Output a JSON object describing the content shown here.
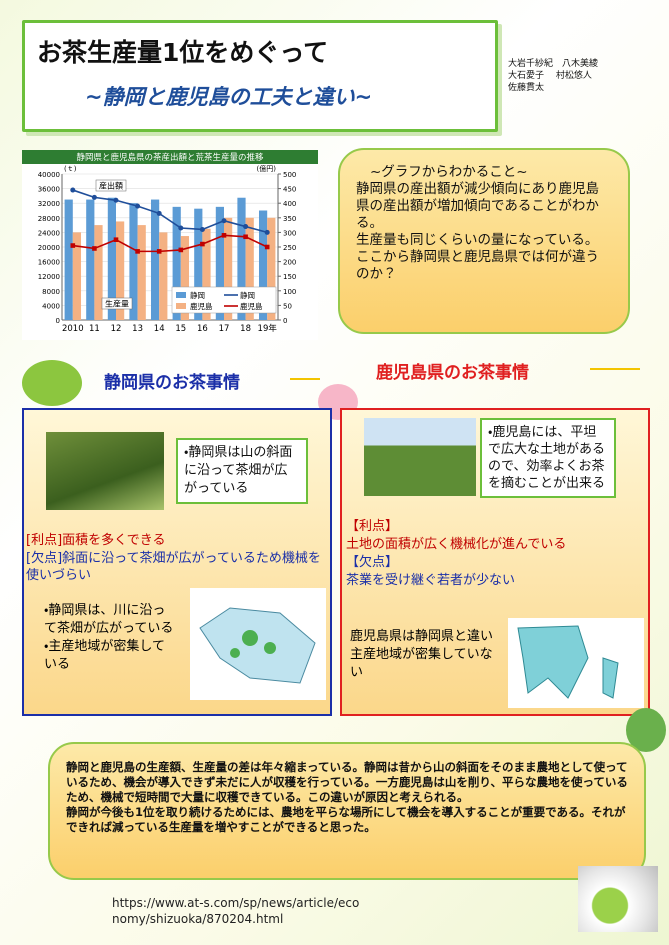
{
  "header": {
    "title": "お茶生産量1位をめぐって",
    "subtitle": "~静岡と鹿児島の工夫と違い~",
    "authors": [
      "大岩千紗紀　八木美綾",
      "大石愛子　 村松悠人",
      "佐藤貫太"
    ]
  },
  "chart_data": {
    "type": "bar",
    "title": "静岡県と鹿児島県の茶産出額と荒茶生産量の推移",
    "categories": [
      "2010",
      "11",
      "12",
      "13",
      "14",
      "15",
      "16",
      "17",
      "18",
      "19年"
    ],
    "series": [
      {
        "name": "静岡",
        "color": "#5b9bd5",
        "values": [
          33000,
          33000,
          33500,
          32000,
          33000,
          31000,
          30500,
          31000,
          33500,
          30000
        ]
      },
      {
        "name": "鹿児島",
        "color": "#f4b183",
        "values": [
          24000,
          26000,
          27000,
          26000,
          24000,
          23000,
          25000,
          28000,
          28000,
          28000
        ]
      },
      {
        "name": "静岡",
        "type": "line",
        "axis": "y2",
        "color": "#1f4e9a",
        "values": [
          445,
          420,
          410,
          390,
          365,
          315,
          310,
          340,
          320,
          300
        ]
      },
      {
        "name": "鹿児島",
        "type": "line",
        "axis": "y2",
        "color": "#c00000",
        "values": [
          255,
          245,
          275,
          235,
          235,
          240,
          260,
          290,
          285,
          250
        ]
      }
    ],
    "ylim": [
      0,
      40000
    ],
    "yticks": [
      0,
      4000,
      8000,
      12000,
      16000,
      20000,
      24000,
      28000,
      32000,
      36000,
      40000
    ],
    "y2lim": [
      0,
      500
    ],
    "y2ticks": [
      0,
      50,
      100,
      150,
      200,
      250,
      300,
      350,
      400,
      450,
      500
    ],
    "y_unit": "(ｔ)",
    "y2_unit": "(億円)",
    "annotations": [
      "産出額",
      "生産量"
    ],
    "grid": true
  },
  "graph_notes": {
    "heading": "~グラフからわかること~",
    "lines": [
      "静岡県の産出額が減少傾向にあり鹿児島県の産出額が増加傾向であることがわかる。",
      "生産量も同じくらいの量になっている。",
      "ここから静岡県と鹿児島県では何が違うのか？"
    ]
  },
  "shizuoka": {
    "heading": "静岡県のお茶事情",
    "photo_caption": "・静岡県は山の斜面に沿って茶畑が広がっている",
    "merit": "[利点]面積を多くできる",
    "demerit": "[欠点]斜面に沿って茶畑が広がっているため機械を使いづらい",
    "map_caption": [
      "・静岡県は、川に沿って茶畑が広がっている",
      "・主産地域が密集している"
    ]
  },
  "kagoshima": {
    "heading": "鹿児島県のお茶事情",
    "photo_caption": "・鹿児島には、平坦で広大な土地があるので、効率よくお茶を摘むことが出来る",
    "merit_label": "【利点】",
    "merit": "土地の面積が広く機械化が進んでいる",
    "demerit_label": "【欠点】",
    "demerit": "茶業を受け継ぐ若者が少ない",
    "map_caption": "鹿児島県は静岡県と違い主産地域が密集していない"
  },
  "conclusion": [
    "静岡と鹿児島の生産額、生産量の差は年々縮まっている。静岡は昔から山の斜面をそのまま農地として使っているため、機会が導入できず未だに人が収穫を行っている。一方鹿児島は山を削り、平らな農地を使っているため、機械で短時間で大量に収穫できている。この違いが原因と考えられる。",
    "静岡が今後も1位を取り続けるためには、農地を平らな場所にして機会を導入することが重要である。それができれば減っている生産量を増やすことができると思った。"
  ],
  "source_url": "https://www.at-s.com/sp/news/article/economy/shizuoka/870204.html"
}
